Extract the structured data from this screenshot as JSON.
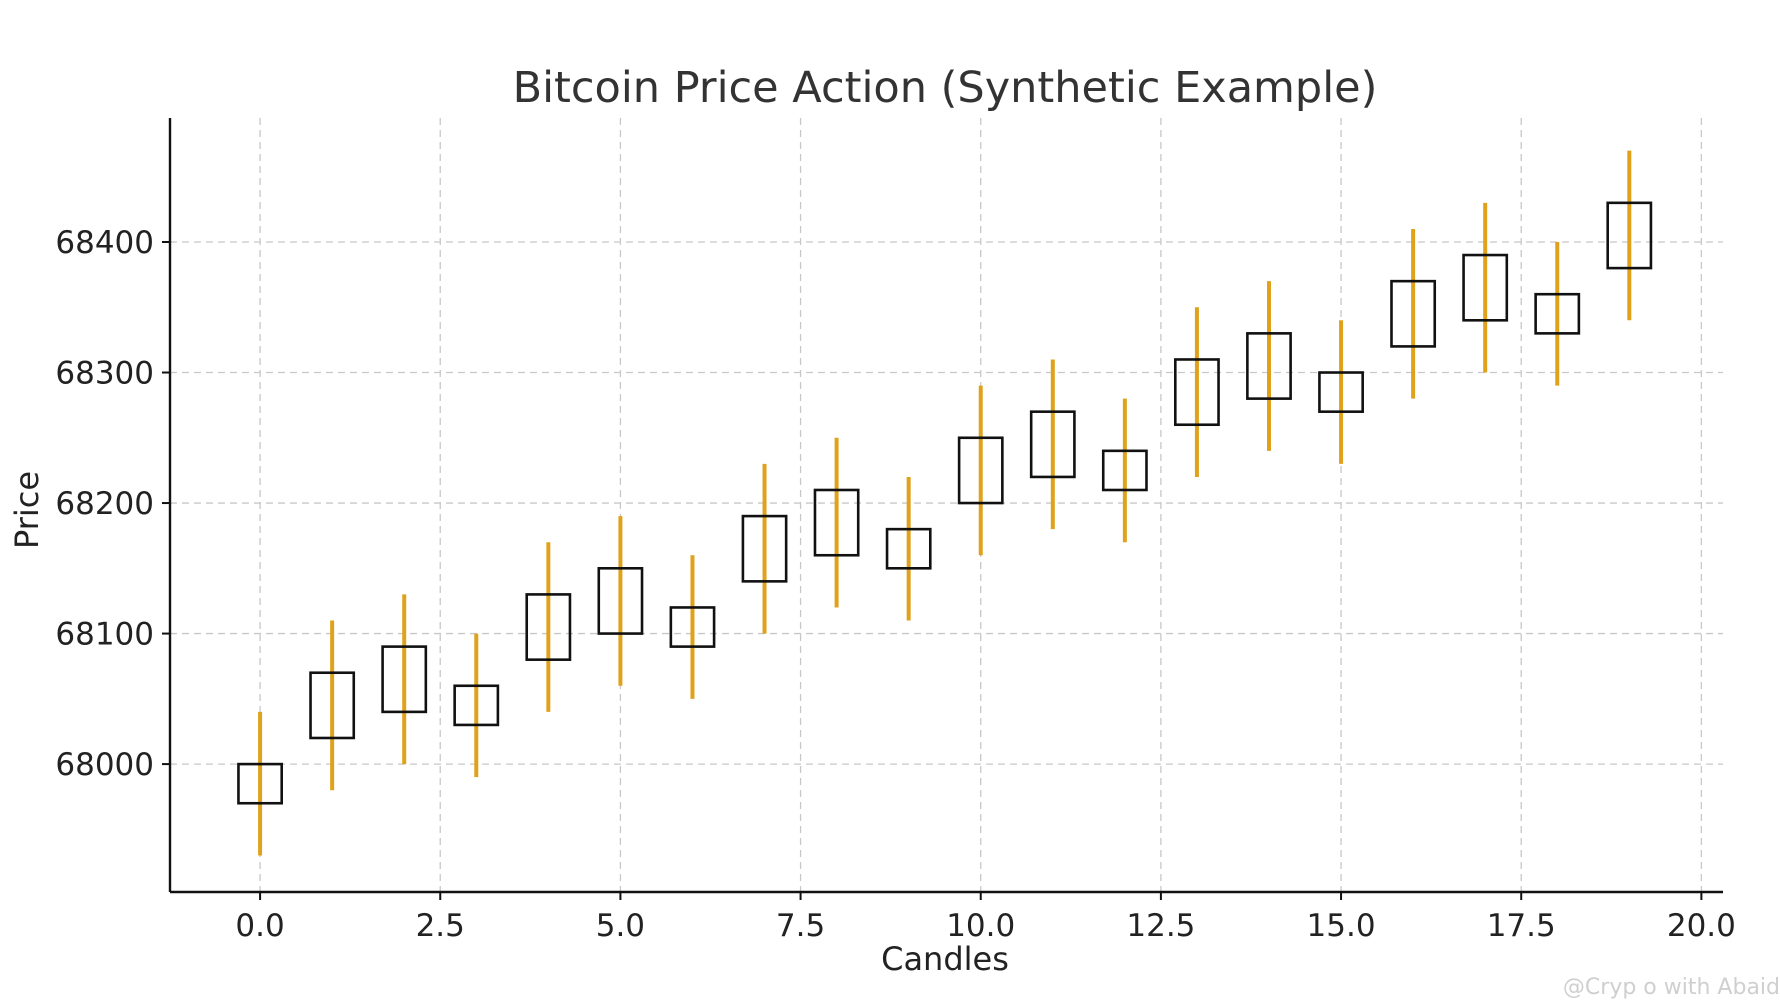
{
  "chart_data": {
    "type": "candlestick",
    "title": "Bitcoin Price Action (Synthetic Example)",
    "xlabel": "Candles",
    "ylabel": "Price",
    "xlim": [
      -1.25,
      20.3
    ],
    "ylim": [
      67902,
      68495
    ],
    "x_ticks": [
      0.0,
      2.5,
      5.0,
      7.5,
      10.0,
      12.5,
      15.0,
      17.5,
      20.0
    ],
    "x_tick_labels": [
      "0.0",
      "2.5",
      "5.0",
      "7.5",
      "10.0",
      "12.5",
      "15.0",
      "17.5",
      "20.0"
    ],
    "y_ticks": [
      68000,
      68100,
      68200,
      68300,
      68400
    ],
    "y_tick_labels": [
      "68000",
      "68100",
      "68200",
      "68300",
      "68400"
    ],
    "grid": true,
    "candles": [
      {
        "x": 0,
        "open": 67970,
        "close": 68000,
        "low": 67930,
        "high": 68040
      },
      {
        "x": 1,
        "open": 68020,
        "close": 68070,
        "low": 67980,
        "high": 68110
      },
      {
        "x": 2,
        "open": 68040,
        "close": 68090,
        "low": 68000,
        "high": 68130
      },
      {
        "x": 3,
        "open": 68030,
        "close": 68060,
        "low": 67990,
        "high": 68100
      },
      {
        "x": 4,
        "open": 68080,
        "close": 68130,
        "low": 68040,
        "high": 68170
      },
      {
        "x": 5,
        "open": 68100,
        "close": 68150,
        "low": 68060,
        "high": 68190
      },
      {
        "x": 6,
        "open": 68090,
        "close": 68120,
        "low": 68050,
        "high": 68160
      },
      {
        "x": 7,
        "open": 68140,
        "close": 68190,
        "low": 68100,
        "high": 68230
      },
      {
        "x": 8,
        "open": 68160,
        "close": 68210,
        "low": 68120,
        "high": 68250
      },
      {
        "x": 9,
        "open": 68150,
        "close": 68180,
        "low": 68110,
        "high": 68220
      },
      {
        "x": 10,
        "open": 68200,
        "close": 68250,
        "low": 68160,
        "high": 68290
      },
      {
        "x": 11,
        "open": 68220,
        "close": 68270,
        "low": 68180,
        "high": 68310
      },
      {
        "x": 12,
        "open": 68210,
        "close": 68240,
        "low": 68170,
        "high": 68280
      },
      {
        "x": 13,
        "open": 68260,
        "close": 68310,
        "low": 68220,
        "high": 68350
      },
      {
        "x": 14,
        "open": 68280,
        "close": 68330,
        "low": 68240,
        "high": 68370
      },
      {
        "x": 15,
        "open": 68270,
        "close": 68300,
        "low": 68230,
        "high": 68340
      },
      {
        "x": 16,
        "open": 68320,
        "close": 68370,
        "low": 68280,
        "high": 68410
      },
      {
        "x": 17,
        "open": 68340,
        "close": 68390,
        "low": 68300,
        "high": 68430
      },
      {
        "x": 18,
        "open": 68330,
        "close": 68360,
        "low": 68290,
        "high": 68400
      },
      {
        "x": 19,
        "open": 68380,
        "close": 68430,
        "low": 68340,
        "high": 68470
      }
    ],
    "colors": {
      "wick": "#e0a21c",
      "body": "#111111"
    }
  },
  "watermark": "@Cryp  o with Abaid"
}
